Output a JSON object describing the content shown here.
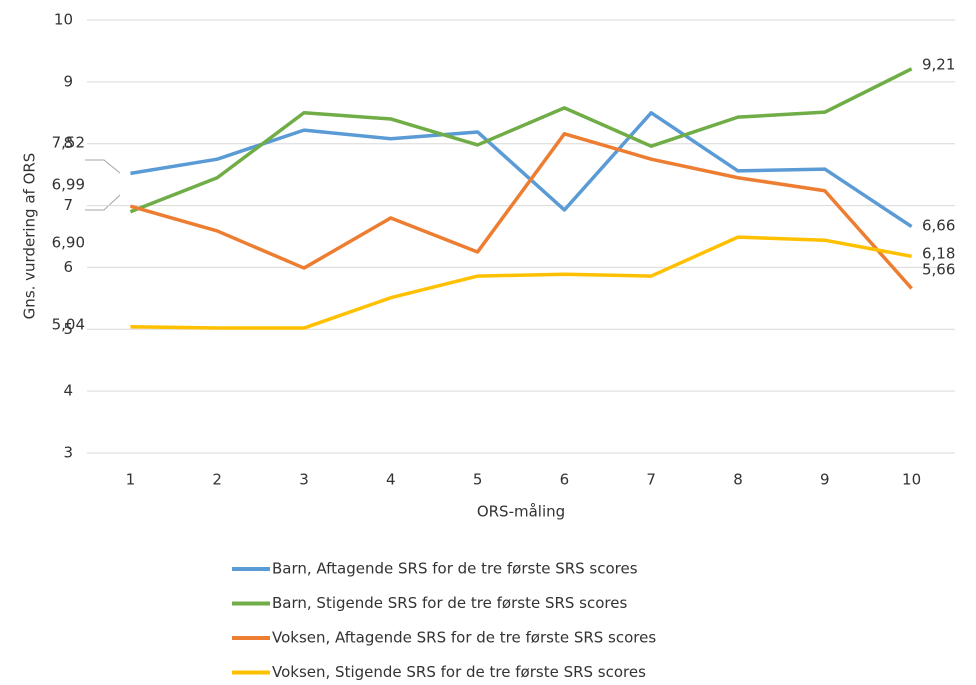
{
  "chart_data": {
    "type": "line",
    "x_label": "ORS-måling",
    "y_label": "Gns. vurdering af ORS",
    "categories": [
      "1",
      "2",
      "3",
      "4",
      "5",
      "6",
      "7",
      "8",
      "9",
      "10"
    ],
    "ylim": [
      3,
      10
    ],
    "yticks": [
      3,
      4,
      5,
      6,
      7,
      8,
      9,
      10
    ],
    "grid": true,
    "legend": "bottom",
    "series": [
      {
        "name": "Barn, Aftagende SRS for de tre første SRS scores",
        "color": "#5b9bd5",
        "values": [
          7.52,
          7.75,
          8.22,
          8.08,
          8.19,
          6.93,
          8.5,
          7.56,
          7.59,
          6.66
        ],
        "value_labels": [
          "7,52",
          null,
          null,
          null,
          null,
          null,
          null,
          null,
          null,
          "6,66"
        ]
      },
      {
        "name": "Barn, Stigende SRS for de tre første SRS scores",
        "color": "#70ad47",
        "values": [
          6.9,
          7.45,
          8.5,
          8.4,
          7.98,
          8.58,
          7.96,
          8.43,
          8.51,
          9.21
        ],
        "value_labels": [
          "6,90",
          null,
          null,
          null,
          null,
          null,
          null,
          null,
          null,
          "9,21"
        ]
      },
      {
        "name": "Voksen, Aftagende SRS for de tre første SRS scores",
        "color": "#ed7d31",
        "values": [
          6.99,
          6.59,
          5.99,
          6.8,
          6.25,
          8.16,
          7.75,
          7.45,
          7.24,
          5.66
        ],
        "value_labels": [
          "6,99",
          null,
          null,
          null,
          null,
          null,
          null,
          null,
          null,
          "5,66"
        ]
      },
      {
        "name": "Voksen, Stigende SRS for de tre første SRS scores",
        "color": "#ffc000",
        "values": [
          5.04,
          5.02,
          5.02,
          5.51,
          5.86,
          5.89,
          5.86,
          6.49,
          6.44,
          6.18
        ],
        "value_labels": [
          "5,04",
          null,
          null,
          null,
          null,
          null,
          null,
          null,
          null,
          "6,18"
        ]
      }
    ]
  }
}
